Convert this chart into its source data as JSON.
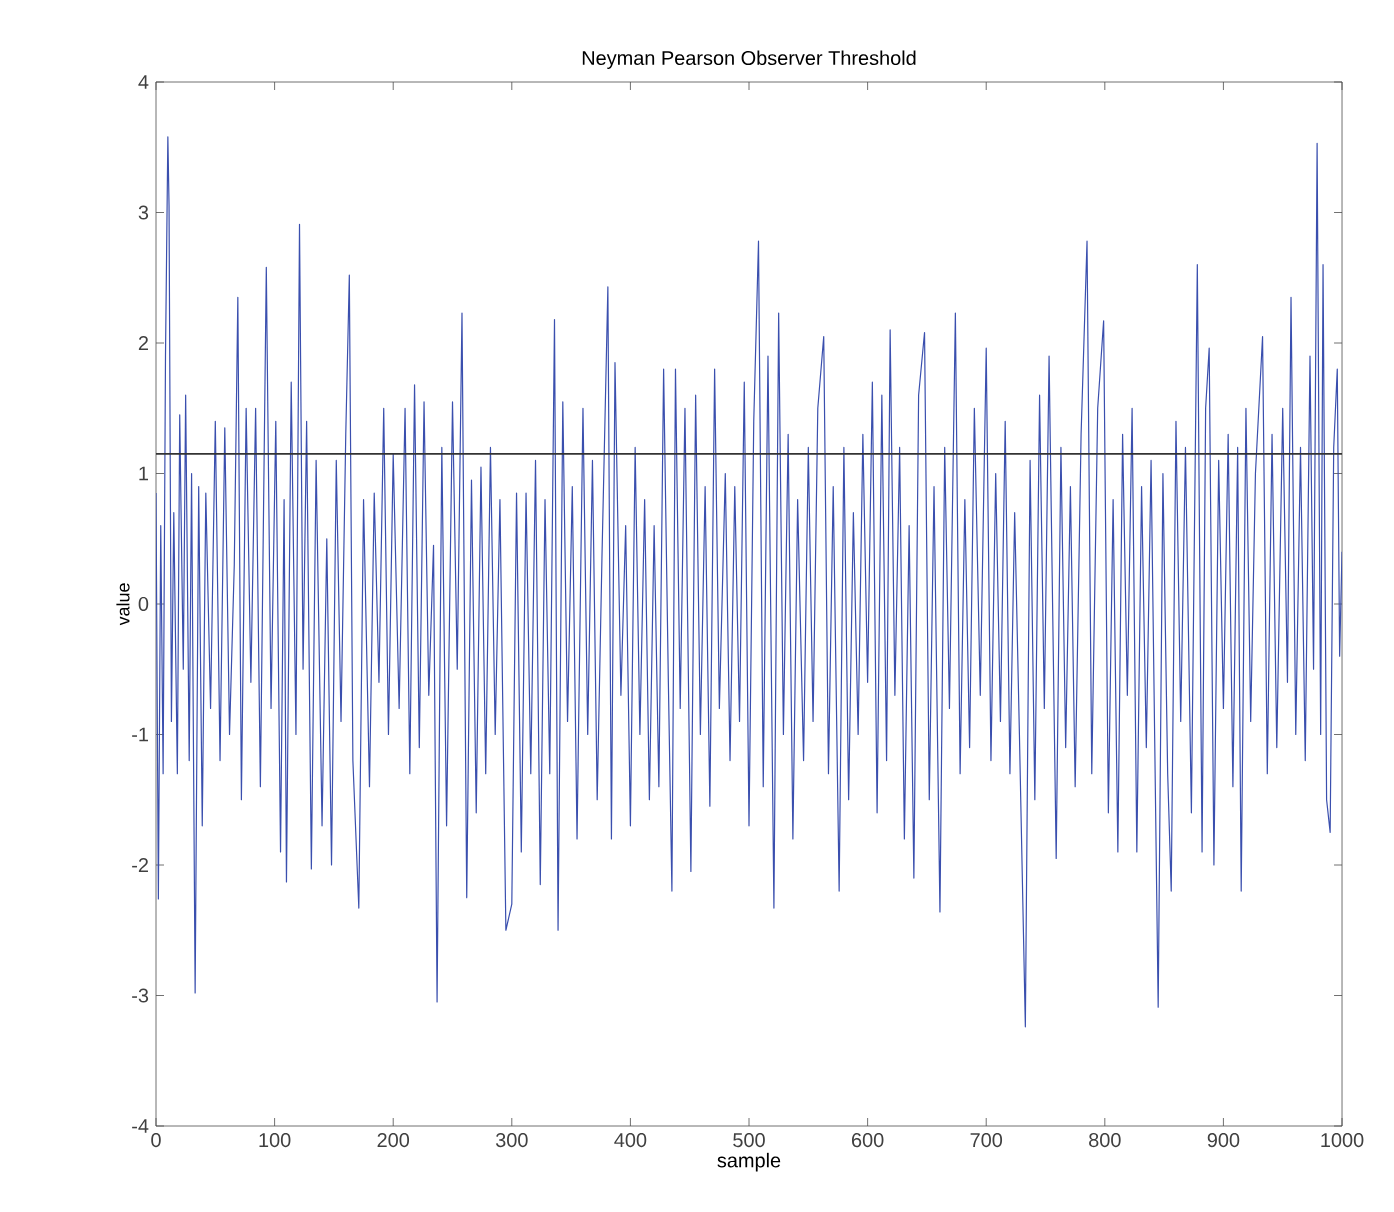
{
  "chart_data": {
    "type": "line",
    "title": "Neyman Pearson Observer Threshold",
    "xlabel": "sample",
    "ylabel": "value",
    "xlim": [
      0,
      1000
    ],
    "ylim": [
      -4,
      4
    ],
    "xticks": [
      0,
      100,
      200,
      300,
      400,
      500,
      600,
      700,
      800,
      900,
      1000
    ],
    "yticks": [
      -4,
      -3,
      -2,
      -1,
      0,
      1,
      2,
      3,
      4
    ],
    "grid": false,
    "marker": "none",
    "line_style": "solid",
    "ref_lines": [
      {
        "axis": "y",
        "value": 1.15,
        "color": "#333333"
      }
    ],
    "series": [
      {
        "color": "#3a4fae",
        "x": [
          0,
          2,
          4,
          6,
          8,
          10,
          11,
          13,
          15,
          18,
          20,
          23,
          25,
          28,
          30,
          33,
          36,
          39,
          42,
          46,
          50,
          54,
          58,
          62,
          66,
          69,
          72,
          76,
          80,
          84,
          88,
          93,
          97,
          101,
          105,
          108,
          110,
          114,
          118,
          121,
          124,
          127,
          131,
          135,
          140,
          144,
          148,
          152,
          156,
          160,
          163,
          166,
          171,
          175,
          180,
          184,
          188,
          192,
          196,
          200,
          205,
          210,
          214,
          218,
          222,
          226,
          230,
          234,
          237,
          241,
          245,
          250,
          254,
          258,
          262,
          266,
          270,
          274,
          278,
          282,
          286,
          290,
          295,
          300,
          304,
          308,
          312,
          316,
          320,
          324,
          328,
          332,
          336,
          339,
          343,
          347,
          351,
          355,
          360,
          364,
          368,
          372,
          376,
          381,
          384,
          387,
          392,
          396,
          400,
          404,
          408,
          412,
          416,
          420,
          424,
          428,
          432,
          435,
          438,
          442,
          446,
          451,
          455,
          459,
          463,
          467,
          471,
          475,
          480,
          484,
          488,
          492,
          496,
          500,
          504,
          508,
          512,
          516,
          521,
          525,
          529,
          533,
          537,
          541,
          546,
          550,
          554,
          558,
          563,
          567,
          571,
          576,
          580,
          584,
          588,
          592,
          596,
          600,
          604,
          608,
          612,
          616,
          619,
          623,
          627,
          631,
          635,
          639,
          643,
          648,
          652,
          656,
          661,
          665,
          669,
          674,
          678,
          682,
          686,
          690,
          695,
          700,
          704,
          708,
          712,
          716,
          720,
          724,
          728,
          733,
          737,
          741,
          745,
          749,
          753,
          759,
          763,
          767,
          771,
          775,
          780,
          785,
          789,
          794,
          799,
          803,
          807,
          811,
          815,
          819,
          823,
          827,
          831,
          835,
          839,
          845,
          849,
          853,
          856,
          860,
          864,
          868,
          873,
          878,
          882,
          885,
          888,
          892,
          896,
          900,
          904,
          908,
          912,
          915,
          919,
          923,
          927,
          933,
          937,
          941,
          945,
          950,
          954,
          957,
          961,
          965,
          969,
          973,
          976,
          979,
          982,
          984,
          987,
          990,
          993,
          996,
          998,
          1000
        ],
        "values": [
          0.85,
          -2.26,
          0.6,
          -1.3,
          1.9,
          3.58,
          3.05,
          -0.9,
          0.7,
          -1.3,
          1.45,
          -0.5,
          1.6,
          -1.2,
          1.0,
          -2.98,
          0.9,
          -1.7,
          0.85,
          -0.8,
          1.4,
          -1.2,
          1.35,
          -1.0,
          0.3,
          2.35,
          -1.5,
          1.5,
          -0.6,
          1.5,
          -1.4,
          2.58,
          -0.8,
          1.4,
          -1.9,
          0.8,
          -2.13,
          1.7,
          -1.0,
          2.91,
          -0.5,
          1.4,
          -2.03,
          1.1,
          -1.7,
          0.5,
          -2.0,
          1.1,
          -0.9,
          1.3,
          2.52,
          -1.2,
          -2.33,
          0.8,
          -1.4,
          0.85,
          -0.6,
          1.5,
          -1.0,
          1.15,
          -0.8,
          1.5,
          -1.3,
          1.68,
          -1.1,
          1.55,
          -0.7,
          0.45,
          -3.05,
          1.2,
          -1.7,
          1.55,
          -0.5,
          2.23,
          -2.25,
          0.95,
          -1.6,
          1.05,
          -1.3,
          1.2,
          -1.0,
          0.8,
          -2.5,
          -2.3,
          0.85,
          -1.9,
          0.85,
          -1.3,
          1.1,
          -2.15,
          0.8,
          -1.3,
          2.18,
          -2.5,
          1.55,
          -0.9,
          0.9,
          -1.8,
          1.5,
          -1.0,
          1.1,
          -1.5,
          0.35,
          2.43,
          -1.8,
          1.85,
          -0.7,
          0.6,
          -1.7,
          1.2,
          -1.0,
          0.8,
          -1.5,
          0.6,
          -1.4,
          1.8,
          -0.6,
          -2.2,
          1.8,
          -0.8,
          1.5,
          -2.05,
          1.6,
          -1.0,
          0.9,
          -1.55,
          1.8,
          -0.8,
          1.0,
          -1.2,
          0.9,
          -0.9,
          1.7,
          -1.7,
          1.4,
          2.78,
          -1.4,
          1.9,
          -2.33,
          2.23,
          -1.0,
          1.3,
          -1.8,
          0.8,
          -1.2,
          1.2,
          -0.9,
          1.5,
          2.05,
          -1.3,
          0.9,
          -2.2,
          1.2,
          -1.5,
          0.7,
          -1.0,
          1.3,
          -0.6,
          1.7,
          -1.6,
          1.6,
          -1.2,
          2.1,
          -0.7,
          1.2,
          -1.8,
          0.6,
          -2.1,
          1.6,
          2.08,
          -1.5,
          0.9,
          -2.36,
          1.2,
          -0.8,
          2.23,
          -1.3,
          0.8,
          -1.1,
          1.5,
          -0.7,
          1.96,
          -1.2,
          1.0,
          -0.9,
          1.4,
          -1.3,
          0.7,
          -1.0,
          -3.24,
          1.1,
          -1.5,
          1.6,
          -0.8,
          1.9,
          -1.95,
          1.2,
          -1.1,
          0.9,
          -1.4,
          1.3,
          2.78,
          -1.3,
          1.5,
          2.17,
          -1.6,
          0.8,
          -1.9,
          1.3,
          -0.7,
          1.5,
          -1.9,
          0.9,
          -1.1,
          1.1,
          -3.09,
          1.0,
          -1.3,
          -2.2,
          1.4,
          -0.9,
          1.2,
          -1.6,
          2.6,
          -1.9,
          1.5,
          1.96,
          -2.0,
          1.1,
          -0.8,
          1.3,
          -1.4,
          1.2,
          -2.2,
          1.5,
          -0.9,
          1.0,
          2.05,
          -1.3,
          1.3,
          -1.1,
          1.5,
          -0.6,
          2.35,
          -1.0,
          1.2,
          -1.2,
          1.9,
          -0.5,
          3.53,
          -1.0,
          2.6,
          -1.5,
          -1.75,
          1.2,
          1.8,
          -0.4,
          0.4
        ]
      }
    ]
  }
}
